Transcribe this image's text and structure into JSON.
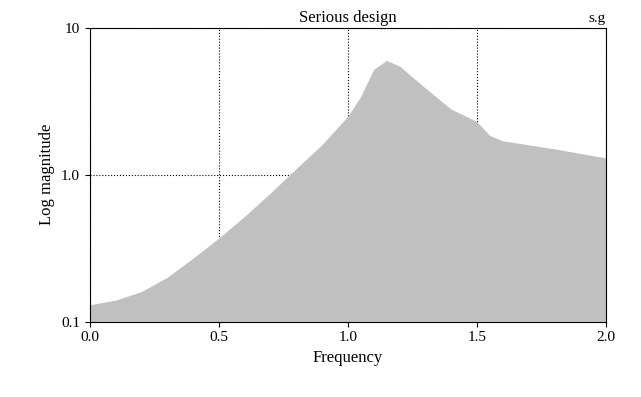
{
  "chart_data": {
    "type": "area",
    "title": "Serious design",
    "annotation": "s.g",
    "x_label": "Frequency",
    "y_label": "Log magnitude",
    "x": [
      0.0,
      0.1,
      0.2,
      0.3,
      0.4,
      0.5,
      0.6,
      0.7,
      0.8,
      0.9,
      1.0,
      1.05,
      1.1,
      1.15,
      1.2,
      1.3,
      1.4,
      1.5,
      1.55,
      1.6,
      1.8,
      2.0
    ],
    "values": [
      0.13,
      0.14,
      0.16,
      0.2,
      0.27,
      0.37,
      0.52,
      0.75,
      1.1,
      1.6,
      2.5,
      3.4,
      5.2,
      6.0,
      5.5,
      3.9,
      2.8,
      2.3,
      1.85,
      1.7,
      1.5,
      1.3
    ],
    "color": "#c0c0c0",
    "log": "y",
    "grid": true,
    "xlim": [
      0,
      2
    ],
    "ylim": [
      0.1,
      10
    ],
    "xticks": [
      {
        "value": 0,
        "label": "0.0"
      },
      0.5,
      {
        "value": 1,
        "label": "1.0"
      },
      1.5,
      {
        "value": 2,
        "label": "2.0"
      }
    ],
    "yticks": [
      0.1,
      {
        "value": 1,
        "label": "1.0"
      },
      10
    ]
  }
}
